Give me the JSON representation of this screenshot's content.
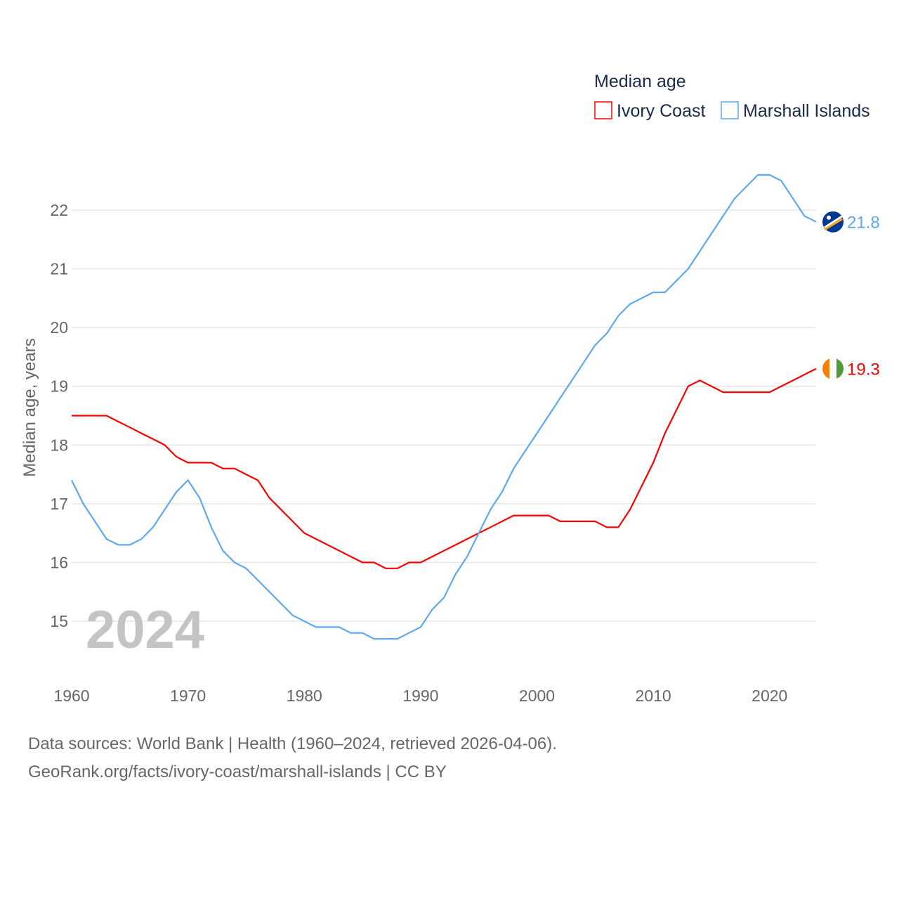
{
  "chart_data": {
    "type": "line",
    "title": "Median age",
    "ylabel": "Median age, years",
    "xlabel": "",
    "year_label": "2024",
    "ylim": [
      14.2,
      23
    ],
    "xlim": [
      1960,
      2024
    ],
    "grid": true,
    "legend_placement": "top-right",
    "x_ticks": [
      "1960",
      "1970",
      "1980",
      "1990",
      "2000",
      "2010",
      "2020"
    ],
    "y_ticks": [
      "15",
      "16",
      "17",
      "18",
      "19",
      "20",
      "21",
      "22"
    ],
    "x": [
      1960,
      1961,
      1962,
      1963,
      1964,
      1965,
      1966,
      1967,
      1968,
      1969,
      1970,
      1971,
      1972,
      1973,
      1974,
      1975,
      1976,
      1977,
      1978,
      1979,
      1980,
      1981,
      1982,
      1983,
      1984,
      1985,
      1986,
      1987,
      1988,
      1989,
      1990,
      1991,
      1992,
      1993,
      1994,
      1995,
      1996,
      1997,
      1998,
      1999,
      2000,
      2001,
      2002,
      2003,
      2004,
      2005,
      2006,
      2007,
      2008,
      2009,
      2010,
      2011,
      2012,
      2013,
      2014,
      2015,
      2016,
      2017,
      2018,
      2019,
      2020,
      2021,
      2022,
      2023,
      2024
    ],
    "series": [
      {
        "name": "Ivory Coast",
        "color": "#ff0000",
        "end_label": "19.3",
        "values": [
          18.5,
          18.5,
          18.5,
          18.5,
          18.4,
          18.3,
          18.2,
          18.1,
          18.0,
          17.8,
          17.7,
          17.7,
          17.7,
          17.6,
          17.6,
          17.5,
          17.4,
          17.1,
          16.9,
          16.7,
          16.5,
          16.4,
          16.3,
          16.2,
          16.1,
          16.0,
          16.0,
          15.9,
          15.9,
          16.0,
          16.0,
          16.1,
          16.2,
          16.3,
          16.4,
          16.5,
          16.6,
          16.7,
          16.8,
          16.8,
          16.8,
          16.8,
          16.7,
          16.7,
          16.7,
          16.7,
          16.6,
          16.6,
          16.9,
          17.3,
          17.7,
          18.2,
          18.6,
          19.0,
          19.1,
          19.0,
          18.9,
          18.9,
          18.9,
          18.9,
          18.9,
          19.0,
          19.1,
          19.2,
          19.3
        ]
      },
      {
        "name": "Marshall Islands",
        "color": "#5ea8ec",
        "end_label": "21.8",
        "values": [
          17.4,
          17.0,
          16.7,
          16.4,
          16.3,
          16.3,
          16.4,
          16.6,
          16.9,
          17.2,
          17.4,
          17.1,
          16.6,
          16.2,
          16.0,
          15.9,
          15.7,
          15.5,
          15.3,
          15.1,
          15.0,
          14.9,
          14.9,
          14.9,
          14.8,
          14.8,
          14.7,
          14.7,
          14.7,
          14.8,
          14.9,
          15.2,
          15.4,
          15.8,
          16.1,
          16.5,
          16.9,
          17.2,
          17.6,
          17.9,
          18.2,
          18.5,
          18.8,
          19.1,
          19.4,
          19.7,
          19.9,
          20.2,
          20.4,
          20.5,
          20.6,
          20.6,
          20.8,
          21.0,
          21.3,
          21.6,
          21.9,
          22.2,
          22.4,
          22.6,
          22.6,
          22.5,
          22.2,
          21.9,
          21.8
        ]
      }
    ]
  },
  "footer": {
    "sources": "Data sources: World Bank | Health (1960–2024, retrieved 2026-04-06).",
    "credit": "GeoRank.org/facts/ivory-coast/marshall-islands | CC BY"
  }
}
